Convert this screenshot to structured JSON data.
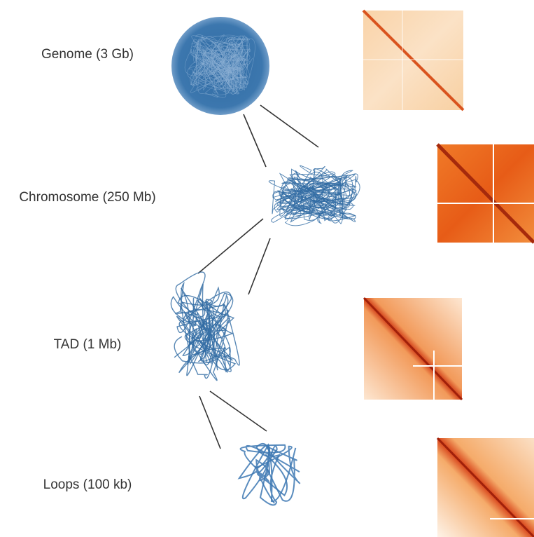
{
  "levels": [
    {
      "label": "Genome (3 Gb)"
    },
    {
      "label": "Chromosome (250 Mb)"
    },
    {
      "label": "TAD (1 Mb)"
    },
    {
      "label": "Loops (100 kb)"
    }
  ]
}
